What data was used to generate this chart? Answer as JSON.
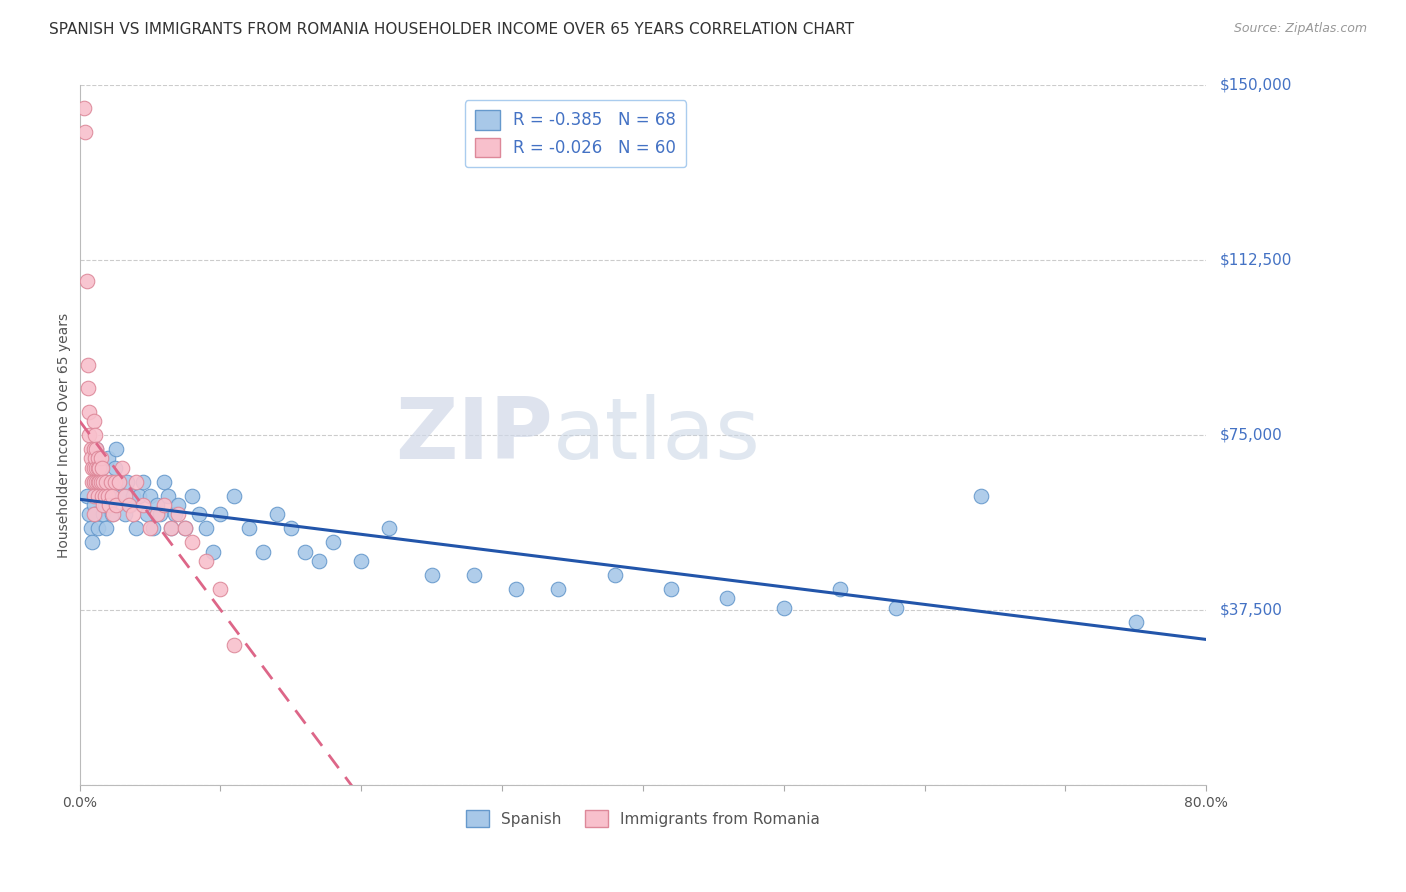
{
  "title": "SPANISH VS IMMIGRANTS FROM ROMANIA HOUSEHOLDER INCOME OVER 65 YEARS CORRELATION CHART",
  "source": "Source: ZipAtlas.com",
  "ylabel": "Householder Income Over 65 years",
  "xlim": [
    0,
    0.8
  ],
  "ylim": [
    0,
    150000
  ],
  "yticks": [
    0,
    37500,
    75000,
    112500,
    150000
  ],
  "ytick_labels": [
    "",
    "$37,500",
    "$75,000",
    "$112,500",
    "$150,000"
  ],
  "xticks": [
    0.0,
    0.1,
    0.2,
    0.3,
    0.4,
    0.5,
    0.6,
    0.7,
    0.8
  ],
  "watermark_zip": "ZIP",
  "watermark_atlas": "atlas",
  "series": {
    "spanish": {
      "color": "#a8c8e8",
      "edge_color": "#6699cc",
      "trend_color": "#2255aa",
      "trend_style": "solid",
      "x": [
        0.005,
        0.007,
        0.008,
        0.009,
        0.01,
        0.01,
        0.011,
        0.012,
        0.013,
        0.014,
        0.015,
        0.016,
        0.017,
        0.018,
        0.019,
        0.02,
        0.021,
        0.022,
        0.023,
        0.025,
        0.026,
        0.028,
        0.03,
        0.032,
        0.034,
        0.036,
        0.038,
        0.04,
        0.042,
        0.045,
        0.048,
        0.05,
        0.052,
        0.055,
        0.057,
        0.06,
        0.063,
        0.065,
        0.068,
        0.07,
        0.075,
        0.08,
        0.085,
        0.09,
        0.095,
        0.1,
        0.11,
        0.12,
        0.13,
        0.14,
        0.15,
        0.16,
        0.17,
        0.18,
        0.2,
        0.22,
        0.25,
        0.28,
        0.31,
        0.34,
        0.38,
        0.42,
        0.46,
        0.5,
        0.54,
        0.58,
        0.64,
        0.75
      ],
      "y": [
        62000,
        58000,
        55000,
        52000,
        65000,
        60000,
        58000,
        72000,
        55000,
        62000,
        68000,
        65000,
        58000,
        60000,
        55000,
        70000,
        65000,
        62000,
        58000,
        68000,
        72000,
        65000,
        62000,
        58000,
        65000,
        60000,
        62000,
        55000,
        62000,
        65000,
        58000,
        62000,
        55000,
        60000,
        58000,
        65000,
        62000,
        55000,
        58000,
        60000,
        55000,
        62000,
        58000,
        55000,
        50000,
        58000,
        62000,
        55000,
        50000,
        58000,
        55000,
        50000,
        48000,
        52000,
        48000,
        55000,
        45000,
        45000,
        42000,
        42000,
        45000,
        42000,
        40000,
        38000,
        42000,
        38000,
        62000,
        35000
      ]
    },
    "romania": {
      "color": "#f8c0cc",
      "edge_color": "#dd8899",
      "trend_color": "#dd6688",
      "trend_style": "dashed",
      "x": [
        0.003,
        0.004,
        0.005,
        0.006,
        0.006,
        0.007,
        0.007,
        0.008,
        0.008,
        0.009,
        0.009,
        0.01,
        0.01,
        0.01,
        0.01,
        0.01,
        0.01,
        0.011,
        0.011,
        0.012,
        0.012,
        0.012,
        0.013,
        0.013,
        0.013,
        0.013,
        0.014,
        0.014,
        0.015,
        0.015,
        0.016,
        0.016,
        0.017,
        0.017,
        0.018,
        0.019,
        0.02,
        0.021,
        0.022,
        0.023,
        0.024,
        0.025,
        0.026,
        0.028,
        0.03,
        0.032,
        0.035,
        0.038,
        0.04,
        0.045,
        0.05,
        0.055,
        0.06,
        0.065,
        0.07,
        0.075,
        0.08,
        0.09,
        0.1,
        0.11
      ],
      "y": [
        145000,
        140000,
        108000,
        90000,
        85000,
        80000,
        75000,
        72000,
        70000,
        68000,
        65000,
        78000,
        72000,
        68000,
        65000,
        62000,
        58000,
        75000,
        70000,
        72000,
        68000,
        65000,
        70000,
        68000,
        65000,
        62000,
        68000,
        65000,
        70000,
        65000,
        68000,
        62000,
        65000,
        60000,
        62000,
        65000,
        62000,
        60000,
        65000,
        62000,
        58000,
        65000,
        60000,
        65000,
        68000,
        62000,
        60000,
        58000,
        65000,
        60000,
        55000,
        58000,
        60000,
        55000,
        58000,
        55000,
        52000,
        48000,
        42000,
        30000
      ]
    }
  },
  "background_color": "#ffffff",
  "grid_color": "#cccccc",
  "title_fontsize": 11,
  "axis_fontsize": 10,
  "tick_fontsize": 10,
  "legend_r_n": {
    "spanish": {
      "R": "-0.385",
      "N": "68"
    },
    "romania": {
      "R": "-0.026",
      "N": "60"
    }
  }
}
